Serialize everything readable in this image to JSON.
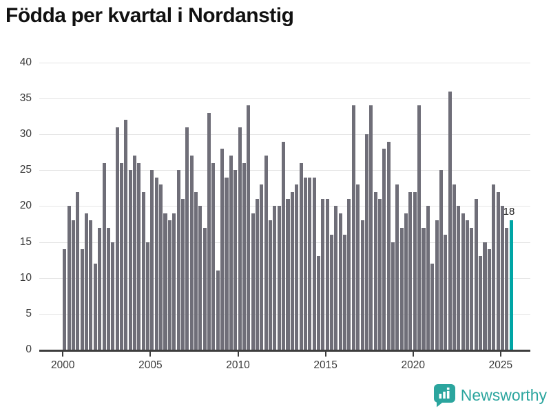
{
  "title": "Födda per kvartal i Nordanstig",
  "annotation": {
    "last_value_label": "18"
  },
  "logo": {
    "text": "Newsworthy"
  },
  "colors": {
    "bar": "#6f6e78",
    "highlight": "#00a5a5",
    "grid": "#e4e4e4",
    "axis": "#3d3d3d",
    "tick_text": "#3a3a3a",
    "logo_teal": "#2ba59e"
  },
  "chart_data": {
    "type": "bar",
    "title": "Födda per kvartal i Nordanstig",
    "x_start": "2000 Q1",
    "x_end": "2025 Q3",
    "x_unit": "quarter",
    "values": [
      14,
      20,
      18,
      22,
      14,
      19,
      18,
      12,
      17,
      26,
      17,
      15,
      31,
      26,
      32,
      25,
      27,
      26,
      22,
      15,
      25,
      24,
      23,
      19,
      18,
      19,
      25,
      21,
      31,
      27,
      22,
      20,
      17,
      33,
      26,
      11,
      28,
      24,
      27,
      25,
      31,
      26,
      34,
      19,
      21,
      23,
      27,
      18,
      20,
      20,
      29,
      21,
      22,
      23,
      26,
      24,
      24,
      24,
      13,
      21,
      21,
      16,
      20,
      19,
      16,
      21,
      34,
      23,
      18,
      30,
      34,
      22,
      21,
      28,
      29,
      15,
      23,
      17,
      19,
      22,
      22,
      34,
      17,
      20,
      12,
      18,
      25,
      16,
      36,
      23,
      20,
      19,
      18,
      17,
      21,
      13,
      15,
      14,
      23,
      22,
      20,
      17,
      18
    ],
    "highlight_last_bar": true,
    "last_value": 18,
    "xticks": [
      "2000",
      "2005",
      "2010",
      "2015",
      "2020",
      "2025"
    ],
    "xtick_indices": [
      0,
      20,
      40,
      60,
      80,
      100
    ],
    "yticks": [
      0,
      5,
      10,
      15,
      20,
      25,
      30,
      35,
      40
    ],
    "ylim": [
      0,
      40
    ],
    "grid": true,
    "legend": false
  }
}
